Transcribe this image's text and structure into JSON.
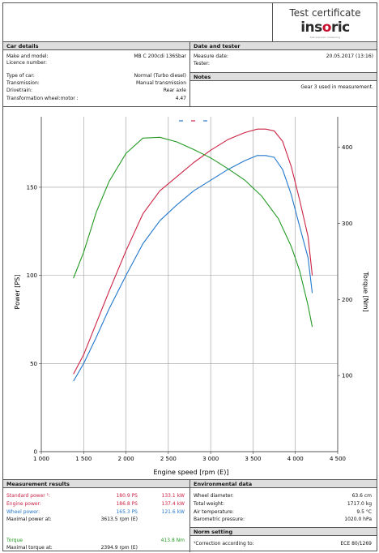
{
  "header": {
    "title": "Test certificate",
    "logo_text_1": "ins",
    "logo_text_2": "o",
    "logo_text_3": "ric",
    "logo_sub": "test precision measuring"
  },
  "car_details": {
    "title": "Car details",
    "make_label": "Make and model:",
    "make_value": "MB  C  200cdi 136Sbar",
    "licence_label": "Licence number:",
    "licence_value": "",
    "type_label": "Type of car:",
    "type_value": "Normal (Turbo diesel)",
    "transmission_label": "Transmission:",
    "transmission_value": "Manual transmission",
    "drivetrain_label": "Drivetrain:",
    "drivetrain_value": "Rear axle",
    "wheel_label": "Transformation wheel:motor :",
    "wheel_value": "4.47"
  },
  "date_tester": {
    "title": "Date and tester",
    "date_label": "Measure date:",
    "date_value": "20.05.2017 (13:16)",
    "tester_label": "Tester:",
    "tester_value": ""
  },
  "notes": {
    "title": "Notes",
    "text": "Gear 3 used in measurement."
  },
  "chart_data": {
    "type": "line",
    "xlabel": "Engine speed [rpm (E)]",
    "ylabel_left": "Power [PS]",
    "ylabel_right": "Torque [Nm]",
    "xlim": [
      1000,
      4500
    ],
    "ylim_left": [
      0,
      190
    ],
    "ylim_right": [
      0,
      440
    ],
    "x_ticks": [
      "1 000",
      "1 500",
      "2 000",
      "2 500",
      "3 000",
      "3 500",
      "4 000",
      "4 500"
    ],
    "y_ticks_left": [
      "0",
      "50",
      "100",
      "150"
    ],
    "y_ticks_right": [
      "100",
      "200",
      "300",
      "400"
    ],
    "grid": true,
    "colors": {
      "standard": "#cc2244",
      "wheel": "#2277cc",
      "torque": "#229922"
    },
    "series": [
      {
        "name": "Standard power",
        "axis": "left",
        "color": "#cc2244",
        "x": [
          1380,
          1500,
          1650,
          1800,
          2000,
          2200,
          2400,
          2600,
          2800,
          3000,
          3200,
          3400,
          3550,
          3650,
          3750,
          3850,
          3950,
          4050,
          4150,
          4200
        ],
        "y": [
          44,
          55,
          73,
          91,
          114,
          135,
          148,
          156,
          164,
          171,
          177,
          181,
          183,
          183,
          182,
          176,
          162,
          143,
          122,
          100
        ]
      },
      {
        "name": "Wheel power",
        "axis": "left",
        "color": "#2277cc",
        "x": [
          1380,
          1500,
          1650,
          1800,
          2000,
          2200,
          2400,
          2600,
          2800,
          3000,
          3200,
          3400,
          3550,
          3650,
          3750,
          3850,
          3950,
          4050,
          4150,
          4200
        ],
        "y": [
          40,
          50,
          65,
          81,
          100,
          118,
          131,
          140,
          148,
          154,
          160,
          165,
          168,
          168,
          167,
          160,
          146,
          128,
          110,
          90
        ]
      },
      {
        "name": "Torque",
        "axis": "right",
        "color": "#229922",
        "x": [
          1380,
          1500,
          1650,
          1800,
          2000,
          2200,
          2400,
          2600,
          2800,
          3000,
          3200,
          3400,
          3600,
          3800,
          3950,
          4050,
          4150,
          4200
        ],
        "y": [
          228,
          262,
          315,
          355,
          392,
          412,
          413,
          407,
          397,
          386,
          372,
          357,
          336,
          306,
          270,
          238,
          192,
          164
        ]
      }
    ]
  },
  "measurement_results": {
    "title": "Measurement results",
    "standard_label": "Standard power ¹:",
    "standard_ps": "180.9 PS",
    "standard_kw": "133.1 kW",
    "engine_label": "Engine power:",
    "engine_ps": "186.8 PS",
    "engine_kw": "137.4 kW",
    "wheel_label": "Wheel power:",
    "wheel_ps": "165.3 PS",
    "wheel_kw": "121.6 kW",
    "max_power_label": "Maximal power at:",
    "max_power_value": "3613.5 rpm (E)",
    "torque_label": "Torque",
    "torque_value": "413.8 Nm",
    "max_torque_label": "Maximal torque at:",
    "max_torque_value": "2394.9 rpm (E)"
  },
  "environment": {
    "title": "Environmental data",
    "wheel_diam_label": "Wheel diameter:",
    "wheel_diam_value": "63.6 cm",
    "weight_label": "Total weight:",
    "weight_value": "1717.0 kg",
    "air_label": "Air temperature:",
    "air_value": "9.5 °C",
    "baro_label": "Barometric pressure:",
    "baro_value": "1020.0 hPa"
  },
  "norm": {
    "title": "Norm setting",
    "corr_label": "¹Correction according to:",
    "corr_value": "ECE 80/1269"
  }
}
